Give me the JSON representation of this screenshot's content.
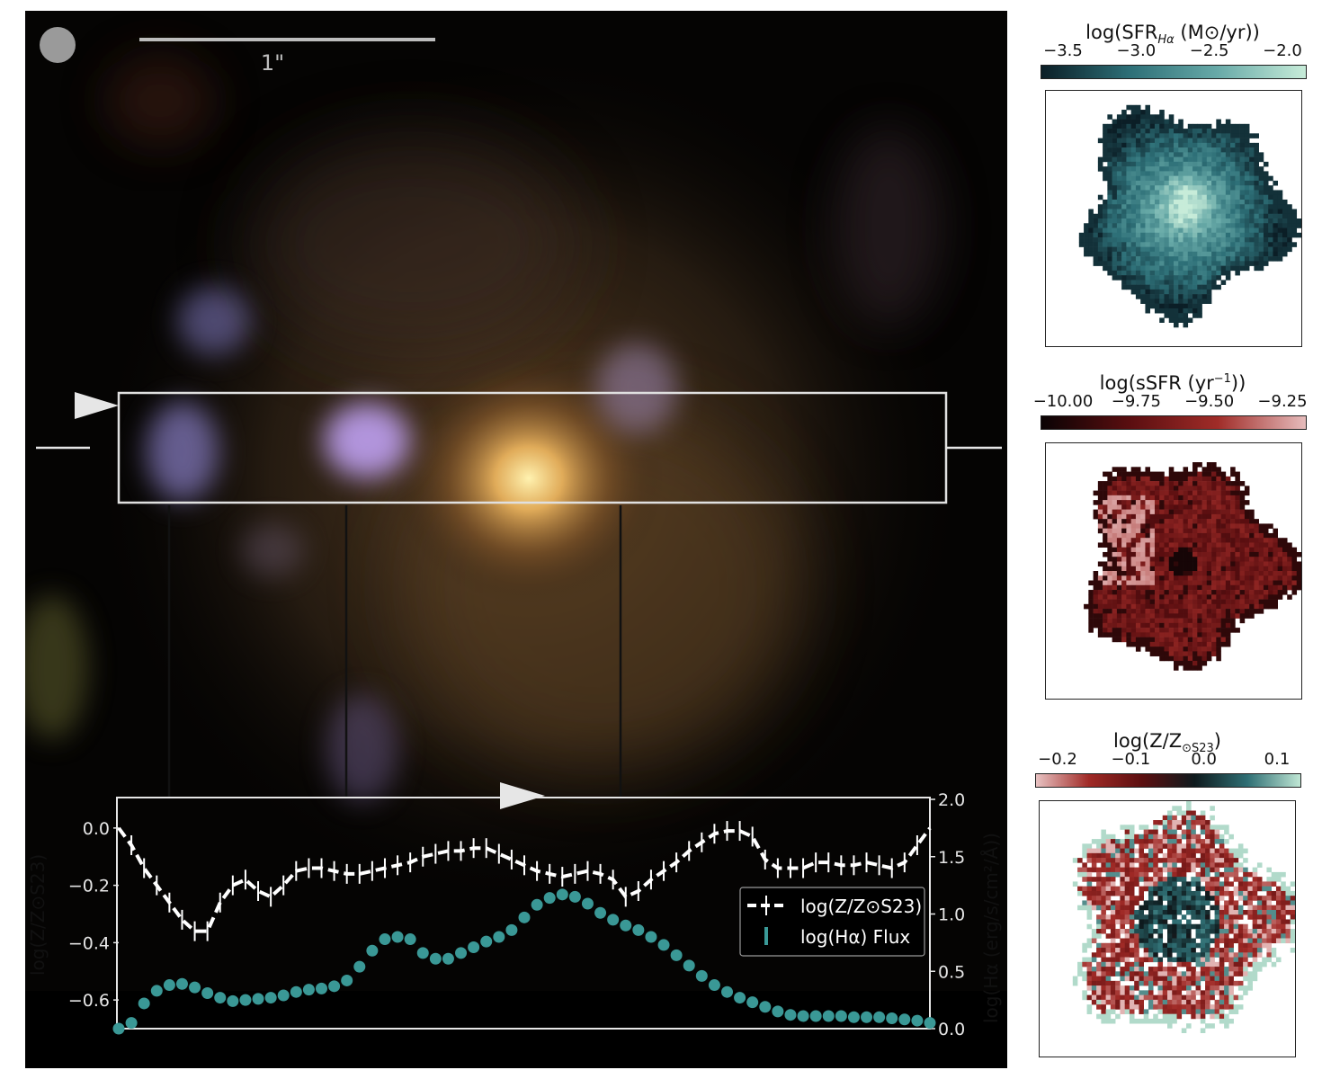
{
  "image": {
    "scale_bar_label": "1\"",
    "beam_icon": "psf-beam-circle"
  },
  "profile_chart": {
    "chart_data": {
      "type": "line",
      "series": [
        {
          "name": "log(Z/Z⊙S23)",
          "style": "dashed-white-with-errorbars",
          "axis": "left",
          "values": [
            0.0,
            -0.06,
            -0.14,
            -0.2,
            -0.26,
            -0.32,
            -0.36,
            -0.36,
            -0.26,
            -0.2,
            -0.18,
            -0.22,
            -0.24,
            -0.2,
            -0.15,
            -0.14,
            -0.14,
            -0.15,
            -0.16,
            -0.16,
            -0.15,
            -0.14,
            -0.13,
            -0.12,
            -0.1,
            -0.09,
            -0.08,
            -0.08,
            -0.07,
            -0.07,
            -0.09,
            -0.11,
            -0.13,
            -0.15,
            -0.16,
            -0.17,
            -0.16,
            -0.15,
            -0.16,
            -0.18,
            -0.24,
            -0.22,
            -0.18,
            -0.15,
            -0.12,
            -0.08,
            -0.05,
            -0.02,
            -0.01,
            -0.01,
            -0.03,
            -0.11,
            -0.14,
            -0.14,
            -0.14,
            -0.12,
            -0.12,
            -0.13,
            -0.13,
            -0.12,
            -0.13,
            -0.14,
            -0.12,
            -0.06,
            0.0
          ]
        },
        {
          "name": "log(Hα) Flux",
          "style": "teal-dots",
          "axis": "right",
          "values": [
            0.0,
            0.05,
            0.22,
            0.33,
            0.38,
            0.39,
            0.36,
            0.31,
            0.27,
            0.24,
            0.25,
            0.26,
            0.27,
            0.29,
            0.32,
            0.34,
            0.35,
            0.37,
            0.42,
            0.54,
            0.68,
            0.78,
            0.8,
            0.78,
            0.66,
            0.61,
            0.61,
            0.66,
            0.71,
            0.76,
            0.8,
            0.86,
            0.97,
            1.08,
            1.14,
            1.17,
            1.15,
            1.09,
            1.01,
            0.95,
            0.9,
            0.86,
            0.8,
            0.73,
            0.64,
            0.55,
            0.46,
            0.38,
            0.32,
            0.27,
            0.23,
            0.19,
            0.15,
            0.12,
            0.11,
            0.11,
            0.11,
            0.11,
            0.1,
            0.1,
            0.1,
            0.09,
            0.08,
            0.07,
            0.05
          ]
        }
      ],
      "y_left": {
        "label": "log(Z/Z⊙S23)",
        "ylim": [
          -0.7,
          0.1
        ],
        "ticks": [
          0.0,
          -0.2,
          -0.4,
          -0.6
        ],
        "tick_labels": [
          "0.0",
          "−0.2",
          "−0.4",
          "−0.6"
        ]
      },
      "y_right": {
        "label": "log(Hα (erg/s/cm²/Å))",
        "ylim": [
          0.0,
          2.0
        ],
        "ticks": [
          2.0,
          1.5,
          1.0,
          0.5,
          0.0
        ],
        "tick_labels": [
          "2.0",
          "1.5",
          "1.0",
          "0.5",
          "0.0"
        ]
      },
      "legend": {
        "placement": "center-right",
        "entries": [
          "log(Z/Z⊙S23)",
          "log(Hα) Flux"
        ]
      }
    }
  },
  "maps": [
    {
      "key": "sfr",
      "colorbar_label": "log(SFR",
      "colorbar_label_sub": "Hα",
      "colorbar_label_tail": " (M⊙/yr))",
      "ticks": [
        "−3.5",
        "−3.0",
        "−2.5",
        "−2.0"
      ],
      "colors": [
        "#0b1e26",
        "#2d6f77",
        "#68aaa8",
        "#c7ecd9"
      ]
    },
    {
      "key": "ssfr",
      "colorbar_label": "log(sSFR (yr",
      "colorbar_label_sup": "−1",
      "colorbar_label_tail": "))",
      "ticks": [
        "−10.00",
        "−9.75",
        "−9.50",
        "−9.25"
      ],
      "colors": [
        "#0a0304",
        "#5a0e10",
        "#a02c28",
        "#e6bcbc"
      ]
    },
    {
      "key": "metallicity",
      "colorbar_label": "log(Z/Z",
      "colorbar_label_sub": "⊙S23",
      "colorbar_label_tail": ")",
      "ticks": [
        "−0.2",
        "−0.1",
        "0.0",
        "0.1"
      ],
      "colors": [
        "#e8c2c2",
        "#a02a26",
        "#5c0f10",
        "#0e1a1d",
        "#2f6f74",
        "#bfe6d4"
      ]
    }
  ]
}
